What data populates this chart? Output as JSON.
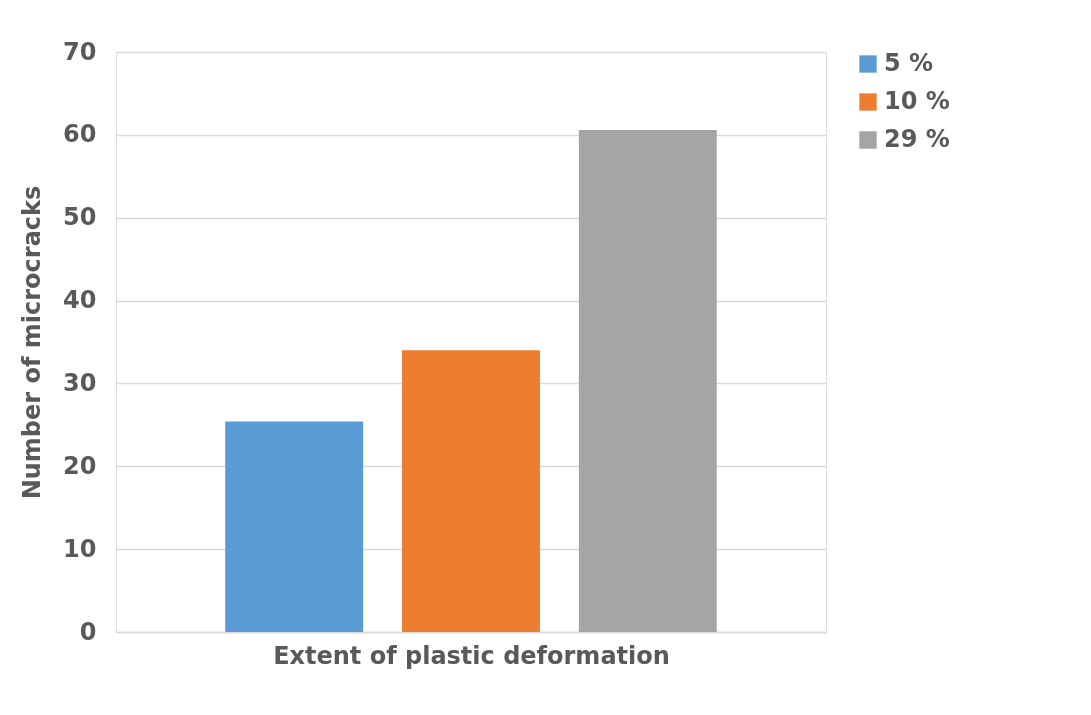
{
  "chart_data": {
    "type": "bar",
    "xlabel": "Extent of plastic deformation",
    "ylabel": "Number of microcracks",
    "categories": [
      null
    ],
    "series": [
      {
        "name": "5 %",
        "color": "#5b9bd5",
        "values": [
          25.4
        ]
      },
      {
        "name": "10 %",
        "color": "#ed7d31",
        "values": [
          34.0
        ]
      },
      {
        "name": "29 %",
        "color": "#a5a5a5",
        "values": [
          60.6
        ]
      }
    ],
    "ylim": [
      0,
      70
    ],
    "yticks": [
      0,
      10,
      20,
      30,
      40,
      50,
      60,
      70
    ],
    "grid": "y",
    "legend": "right"
  }
}
